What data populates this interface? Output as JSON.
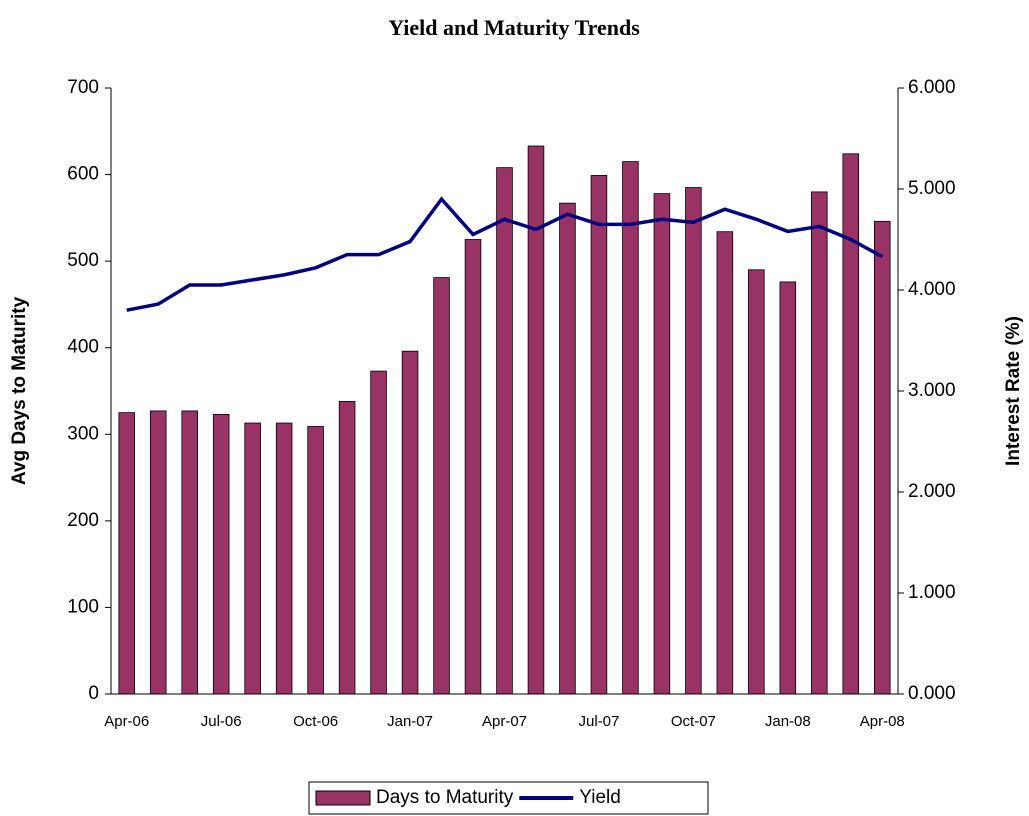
{
  "chart_data": {
    "type": "bar-line",
    "title": "Yield and Maturity Trends",
    "y_label": "Avg Days to Maturity",
    "y2_label": "Interest Rate (%)",
    "categories": [
      "Apr-06",
      null,
      null,
      "Jul-06",
      null,
      null,
      "Oct-06",
      null,
      null,
      "Jan-07",
      null,
      null,
      "Apr-07",
      null,
      null,
      "Jul-07",
      null,
      null,
      "Oct-07",
      null,
      null,
      "Jan-08",
      null,
      null,
      "Apr-08"
    ],
    "series": [
      {
        "name": "Days to Maturity",
        "type": "bar",
        "color": "#993366",
        "values": [
          325,
          327,
          327,
          323,
          313,
          313,
          309,
          338,
          373,
          396,
          481,
          525,
          608,
          633,
          567,
          599,
          615,
          578,
          585,
          534,
          490,
          476,
          580,
          624,
          546
        ]
      },
      {
        "name": "Yield",
        "type": "line",
        "axis": "y2",
        "color": "#000080",
        "values": [
          3.8,
          3.86,
          4.05,
          4.05,
          4.1,
          4.15,
          4.22,
          4.35,
          4.35,
          4.48,
          4.9,
          4.55,
          4.7,
          4.6,
          4.75,
          4.65,
          4.65,
          4.7,
          4.67,
          4.8,
          4.7,
          4.58,
          4.63,
          4.5,
          4.33
        ]
      }
    ],
    "ylim": [
      0,
      700
    ],
    "yticks": [
      0,
      100,
      200,
      300,
      400,
      500,
      600,
      700
    ],
    "y2lim": [
      0,
      6
    ],
    "y2ticks": [
      {
        "value": 0,
        "label": "0.000"
      },
      {
        "value": 1,
        "label": "1.000"
      },
      {
        "value": 2,
        "label": "2.000"
      },
      {
        "value": 3,
        "label": "3.000"
      },
      {
        "value": 4,
        "label": "4.000"
      },
      {
        "value": 5,
        "label": "5.000"
      },
      {
        "value": 6,
        "label": "6.000"
      }
    ],
    "legend": "bottom",
    "grid": false
  }
}
